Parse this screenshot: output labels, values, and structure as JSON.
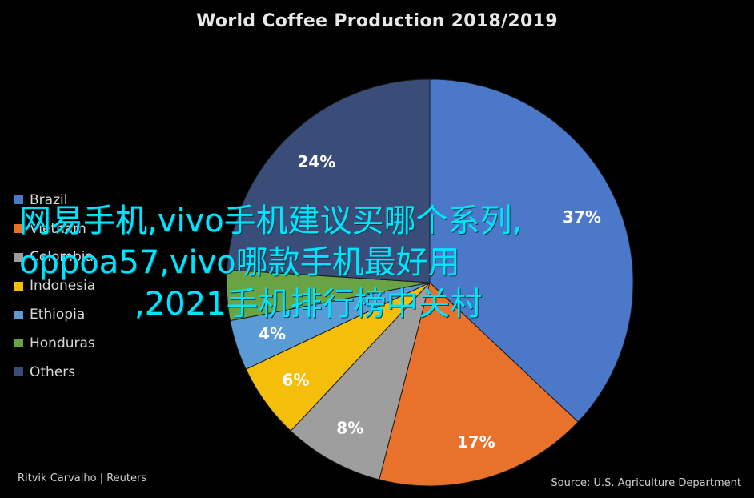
{
  "chart_data": {
    "type": "pie",
    "title": "World Coffee Production 2018/2019",
    "slices": [
      {
        "name": "Brazil",
        "value": 37,
        "label": "37%",
        "color": "#4b78c8"
      },
      {
        "name": "Vietnam",
        "value": 17,
        "label": "17%",
        "color": "#e8722c"
      },
      {
        "name": "Colombia",
        "value": 8,
        "label": "8%",
        "color": "#9e9e9e"
      },
      {
        "name": "Indonesia",
        "value": 6,
        "label": "6%",
        "color": "#f5be0a"
      },
      {
        "name": "Ethiopia",
        "value": 4,
        "label": "4%",
        "color": "#5b9bd5"
      },
      {
        "name": "Honduras",
        "value": 4,
        "label": "",
        "color": "#6aa343"
      },
      {
        "name": "Others",
        "value": 24,
        "label": "24%",
        "color": "#3a4d78"
      }
    ],
    "legend": {
      "position": "left",
      "entries": [
        "Brazil",
        "Vietnam",
        "Colombia",
        "Indonesia",
        "Ethiopia",
        "Honduras",
        "Others"
      ]
    }
  },
  "overlay_text": {
    "line1": "网易手机,vivo手机建议买哪个系列,",
    "line2": "oppoa57,vivo哪款手机最好用",
    "line3": ",2021手机排行榜中关村"
  },
  "credits": {
    "author": "Ritvik Carvalho | Reuters",
    "source": "Source: U.S. Agriculture Department"
  }
}
